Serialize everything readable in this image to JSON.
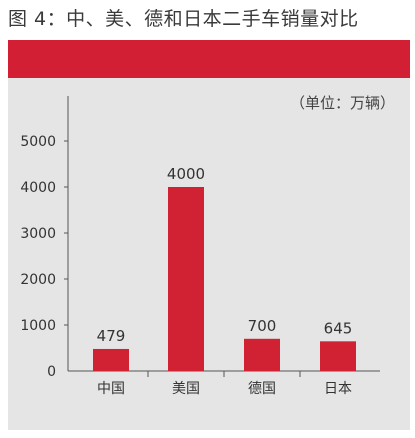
{
  "figure": {
    "title": "图 4：中、美、德和日本二手车销量对比",
    "unit": "（单位：万辆）"
  },
  "colors": {
    "band": "#d31f34",
    "bar": "#d02233",
    "panel": "#e5e5e5",
    "axis": "#555555"
  },
  "chart_data": {
    "type": "bar",
    "title": "图 4：中、美、德和日本二手车销量对比",
    "ylabel": "（单位：万辆）",
    "xlabel": "",
    "categories": [
      "中国",
      "美国",
      "德国",
      "日本"
    ],
    "values": [
      479,
      4000,
      700,
      645
    ],
    "value_labels": [
      "479",
      "4000",
      "700",
      "645"
    ],
    "ylim": [
      0,
      5000
    ],
    "yticks": [
      0,
      1000,
      2000,
      3000,
      4000,
      5000
    ],
    "grid": false,
    "legend": "none"
  }
}
